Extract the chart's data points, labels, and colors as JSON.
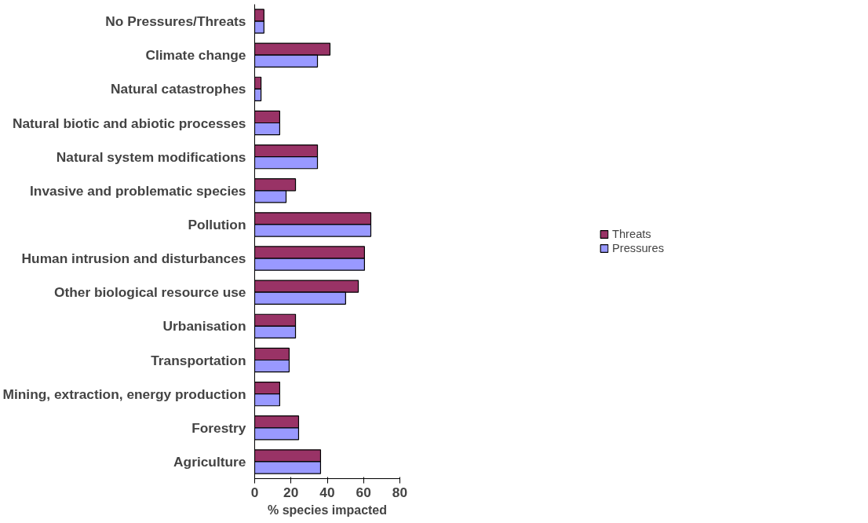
{
  "chart_data": {
    "type": "bar",
    "orientation": "horizontal",
    "xlabel": "% species impacted",
    "categories": [
      "No Pressures/Threats",
      "Climate change",
      "Natural catastrophes",
      "Natural biotic and abiotic processes",
      "Natural system modifications",
      "Invasive and problematic species",
      "Pollution",
      "Human intrusion and disturbances",
      "Other biological resource use",
      "Urbanisation",
      "Transportation",
      "Mining, extraction, energy production",
      "Forestry",
      "Agriculture"
    ],
    "series": [
      {
        "name": "Threats",
        "color": "#993366",
        "values": [
          5.1,
          41.5,
          3.5,
          13.8,
          34.6,
          22.5,
          64.0,
          60.5,
          57.1,
          22.5,
          19.0,
          13.8,
          24.2,
          36.3
        ]
      },
      {
        "name": "Pressures",
        "color": "#9999ff",
        "values": [
          5.1,
          34.6,
          3.5,
          13.8,
          34.6,
          17.3,
          64.0,
          60.5,
          50.1,
          22.5,
          19.0,
          13.8,
          24.2,
          36.3
        ]
      }
    ],
    "xlim": [
      0,
      80
    ],
    "xticks": [
      0,
      20,
      40,
      60,
      80
    ],
    "grid": false,
    "legend": "right"
  }
}
